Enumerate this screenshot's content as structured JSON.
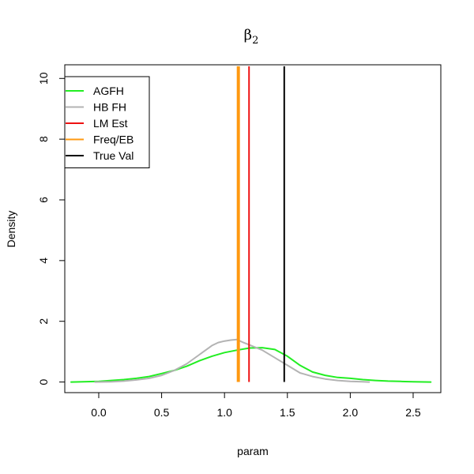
{
  "chart_data": {
    "type": "line",
    "title": "β",
    "title_subscript": "2",
    "xlabel": "param",
    "ylabel": "Density",
    "xlim": [
      -0.27,
      2.72
    ],
    "ylim": [
      -0.35,
      10.45
    ],
    "x_ticks": [
      0.0,
      0.5,
      1.0,
      1.5,
      2.0,
      2.5
    ],
    "x_tick_labels": [
      "0.0",
      "0.5",
      "1.0",
      "1.5",
      "2.0",
      "2.5"
    ],
    "y_ticks": [
      0,
      2,
      4,
      6,
      8,
      10
    ],
    "y_tick_labels": [
      "0",
      "2",
      "4",
      "6",
      "8",
      "10"
    ],
    "grid": false,
    "legend_position": "top-left",
    "series": [
      {
        "name": "AGFH",
        "color": "#22ee22",
        "x": [
          -0.22,
          0.0,
          0.1,
          0.2,
          0.3,
          0.4,
          0.5,
          0.6,
          0.7,
          0.8,
          0.9,
          1.0,
          1.1,
          1.2,
          1.3,
          1.4,
          1.5,
          1.6,
          1.7,
          1.8,
          1.9,
          2.0,
          2.1,
          2.2,
          2.3,
          2.4,
          2.5,
          2.64
        ],
        "y": [
          0.0,
          0.02,
          0.05,
          0.08,
          0.12,
          0.18,
          0.28,
          0.38,
          0.52,
          0.7,
          0.85,
          0.97,
          1.05,
          1.12,
          1.13,
          1.07,
          0.85,
          0.55,
          0.33,
          0.22,
          0.15,
          0.12,
          0.08,
          0.05,
          0.03,
          0.02,
          0.01,
          0.0
        ]
      },
      {
        "name": "HB FH",
        "color": "#b3b3b3",
        "x": [
          -0.03,
          0.1,
          0.2,
          0.3,
          0.4,
          0.5,
          0.6,
          0.7,
          0.8,
          0.9,
          0.95,
          1.0,
          1.05,
          1.1,
          1.15,
          1.2,
          1.3,
          1.4,
          1.5,
          1.6,
          1.7,
          1.8,
          1.9,
          2.0,
          2.1,
          2.15
        ],
        "y": [
          0.0,
          0.01,
          0.03,
          0.07,
          0.12,
          0.22,
          0.38,
          0.6,
          0.9,
          1.2,
          1.3,
          1.35,
          1.38,
          1.4,
          1.3,
          1.22,
          1.05,
          0.8,
          0.55,
          0.3,
          0.18,
          0.1,
          0.05,
          0.02,
          0.01,
          0.0
        ]
      }
    ],
    "vertical_lines": [
      {
        "name": "LM Est",
        "color": "#ee1111",
        "x": 1.195,
        "y_top": 10.4,
        "width": 2
      },
      {
        "name": "Freq/EB",
        "color": "#ff9911",
        "x": 1.11,
        "y_top": 10.4,
        "width": 4
      },
      {
        "name": "True Val",
        "color": "#000000",
        "x": 1.475,
        "y_top": 10.4,
        "width": 2
      }
    ],
    "legend": [
      {
        "name": "AGFH",
        "color": "#22ee22"
      },
      {
        "name": "HB FH",
        "color": "#b3b3b3"
      },
      {
        "name": "LM Est",
        "color": "#ee1111"
      },
      {
        "name": "Freq/EB",
        "color": "#ff9911"
      },
      {
        "name": "True Val",
        "color": "#000000"
      }
    ]
  }
}
